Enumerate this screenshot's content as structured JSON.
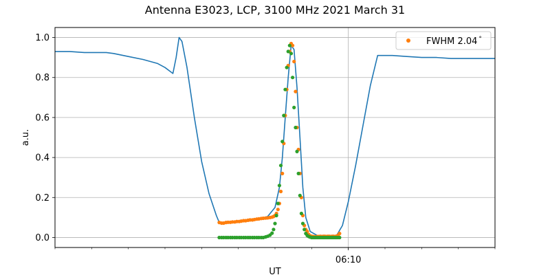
{
  "chart_data": {
    "type": "line",
    "title": "Antenna E3023, LCP, 3100 MHz 2021 March 31",
    "xlabel": "UT",
    "ylabel": "a.u.",
    "xunit": "minutes since 06:00 UT",
    "xlim": [
      0,
      15
    ],
    "ylim": [
      -0.05,
      1.05
    ],
    "x_tick_labels": [
      {
        "x": 10,
        "label": "06:10"
      }
    ],
    "x_minor_ticks": [
      0,
      1.25,
      2.5,
      3.75,
      5,
      6.25,
      7.5,
      8.75,
      10,
      11.25,
      12.5,
      13.75,
      15
    ],
    "y_ticks": [
      0.0,
      0.2,
      0.4,
      0.6,
      0.8,
      1.0
    ],
    "y_tick_labels": [
      "0.0",
      "0.2",
      "0.4",
      "0.6",
      "0.8",
      "1.0"
    ],
    "grid": "on",
    "legend_position": "top-right",
    "legend_label": "FWHM 2.04$^\\circ$",
    "legend_label_display": "FWHM 2.04",
    "legend_label_degree": "°",
    "colors": {
      "measured": "#1f77b4",
      "fit_offset": "#ff7f0e",
      "fit": "#2ca02c"
    },
    "series": [
      {
        "role": "measured",
        "style": "line",
        "x": [
          0.0,
          0.5,
          1.0,
          1.5,
          1.75,
          2.0,
          2.5,
          3.0,
          3.5,
          3.75,
          3.93,
          4.02,
          4.13,
          4.23,
          4.33,
          4.5,
          4.75,
          5.0,
          5.25,
          5.5,
          5.6,
          5.75,
          6.0,
          6.5,
          7.0,
          7.25,
          7.5,
          7.65,
          7.75,
          7.85,
          7.95,
          8.05,
          8.15,
          8.25,
          8.35,
          8.45,
          8.55,
          8.7,
          9.0,
          9.25,
          9.4,
          9.6,
          9.8,
          10.0,
          10.25,
          10.5,
          10.75,
          11.0,
          11.5,
          12.0,
          12.5,
          13.0,
          13.5,
          14.0,
          14.5,
          15.0
        ],
        "y": [
          0.93,
          0.93,
          0.925,
          0.925,
          0.925,
          0.92,
          0.905,
          0.89,
          0.87,
          0.85,
          0.83,
          0.82,
          0.9,
          1.0,
          0.98,
          0.85,
          0.6,
          0.38,
          0.22,
          0.11,
          0.075,
          0.07,
          0.075,
          0.085,
          0.095,
          0.105,
          0.15,
          0.25,
          0.4,
          0.6,
          0.8,
          0.96,
          0.94,
          0.75,
          0.5,
          0.25,
          0.1,
          0.03,
          0.005,
          0.005,
          0.005,
          0.01,
          0.06,
          0.18,
          0.36,
          0.56,
          0.76,
          0.91,
          0.91,
          0.905,
          0.9,
          0.9,
          0.895,
          0.895,
          0.895,
          0.895
        ]
      },
      {
        "role": "fit_offset",
        "style": "points",
        "x": [
          5.6,
          5.68,
          5.75,
          5.83,
          5.9,
          5.98,
          6.05,
          6.13,
          6.2,
          6.28,
          6.35,
          6.43,
          6.5,
          6.58,
          6.65,
          6.73,
          6.8,
          6.88,
          6.95,
          7.03,
          7.1,
          7.18,
          7.25,
          7.33,
          7.4,
          7.45,
          7.5,
          7.55,
          7.6,
          7.65,
          7.7,
          7.75,
          7.8,
          7.85,
          7.9,
          7.95,
          8.0,
          8.05,
          8.1,
          8.15,
          8.2,
          8.25,
          8.3,
          8.35,
          8.4,
          8.45,
          8.5,
          8.55,
          8.6,
          8.65,
          8.7,
          8.75,
          8.8,
          8.85,
          8.9,
          8.95,
          9.0,
          9.05,
          9.1,
          9.15,
          9.2,
          9.25,
          9.3,
          9.35,
          9.4,
          9.45,
          9.5,
          9.55,
          9.6,
          9.65,
          9.7
        ],
        "y": [
          0.075,
          0.072,
          0.072,
          0.075,
          0.076,
          0.076,
          0.078,
          0.078,
          0.08,
          0.08,
          0.082,
          0.084,
          0.084,
          0.086,
          0.088,
          0.088,
          0.09,
          0.092,
          0.093,
          0.095,
          0.096,
          0.097,
          0.098,
          0.1,
          0.102,
          0.105,
          0.11,
          0.12,
          0.14,
          0.17,
          0.23,
          0.32,
          0.47,
          0.61,
          0.74,
          0.86,
          0.93,
          0.97,
          0.96,
          0.88,
          0.73,
          0.55,
          0.44,
          0.32,
          0.2,
          0.11,
          0.06,
          0.04,
          0.03,
          0.015,
          0.008,
          0.006,
          0.005,
          0.004,
          0.004,
          0.005,
          0.005,
          0.006,
          0.005,
          0.006,
          0.006,
          0.005,
          0.006,
          0.006,
          0.005,
          0.006,
          0.006,
          0.005,
          0.007,
          0.01,
          0.02
        ]
      },
      {
        "role": "fit",
        "style": "points",
        "x": [
          5.6,
          5.68,
          5.75,
          5.83,
          5.9,
          5.98,
          6.05,
          6.13,
          6.2,
          6.28,
          6.35,
          6.43,
          6.5,
          6.58,
          6.65,
          6.73,
          6.8,
          6.88,
          6.95,
          7.03,
          7.1,
          7.18,
          7.25,
          7.33,
          7.4,
          7.45,
          7.5,
          7.55,
          7.6,
          7.65,
          7.7,
          7.75,
          7.8,
          7.85,
          7.9,
          7.95,
          8.0,
          8.05,
          8.1,
          8.15,
          8.2,
          8.25,
          8.3,
          8.35,
          8.4,
          8.45,
          8.5,
          8.55,
          8.6,
          8.65,
          8.7,
          8.75,
          8.8,
          8.85,
          8.9,
          8.95,
          9.0,
          9.05,
          9.1,
          9.15,
          9.2,
          9.25,
          9.3,
          9.35,
          9.4,
          9.45,
          9.5,
          9.55,
          9.6,
          9.65,
          9.7
        ],
        "y": [
          0.0,
          0.0,
          0.0,
          0.0,
          0.0,
          0.0,
          0.0,
          0.0,
          0.0,
          0.0,
          0.0,
          0.0,
          0.0,
          0.0,
          0.0,
          0.0,
          0.0,
          0.0,
          0.0,
          0.0,
          0.0,
          0.003,
          0.006,
          0.012,
          0.022,
          0.04,
          0.07,
          0.11,
          0.17,
          0.26,
          0.36,
          0.48,
          0.61,
          0.74,
          0.85,
          0.93,
          0.96,
          0.92,
          0.8,
          0.65,
          0.55,
          0.43,
          0.32,
          0.21,
          0.12,
          0.07,
          0.04,
          0.02,
          0.01,
          0.005,
          0.002,
          0.0,
          0.0,
          0.0,
          0.0,
          0.0,
          0.0,
          0.0,
          0.0,
          0.0,
          0.0,
          0.0,
          0.0,
          0.0,
          0.0,
          0.0,
          0.0,
          0.0,
          0.0,
          0.0,
          0.0
        ]
      }
    ]
  }
}
